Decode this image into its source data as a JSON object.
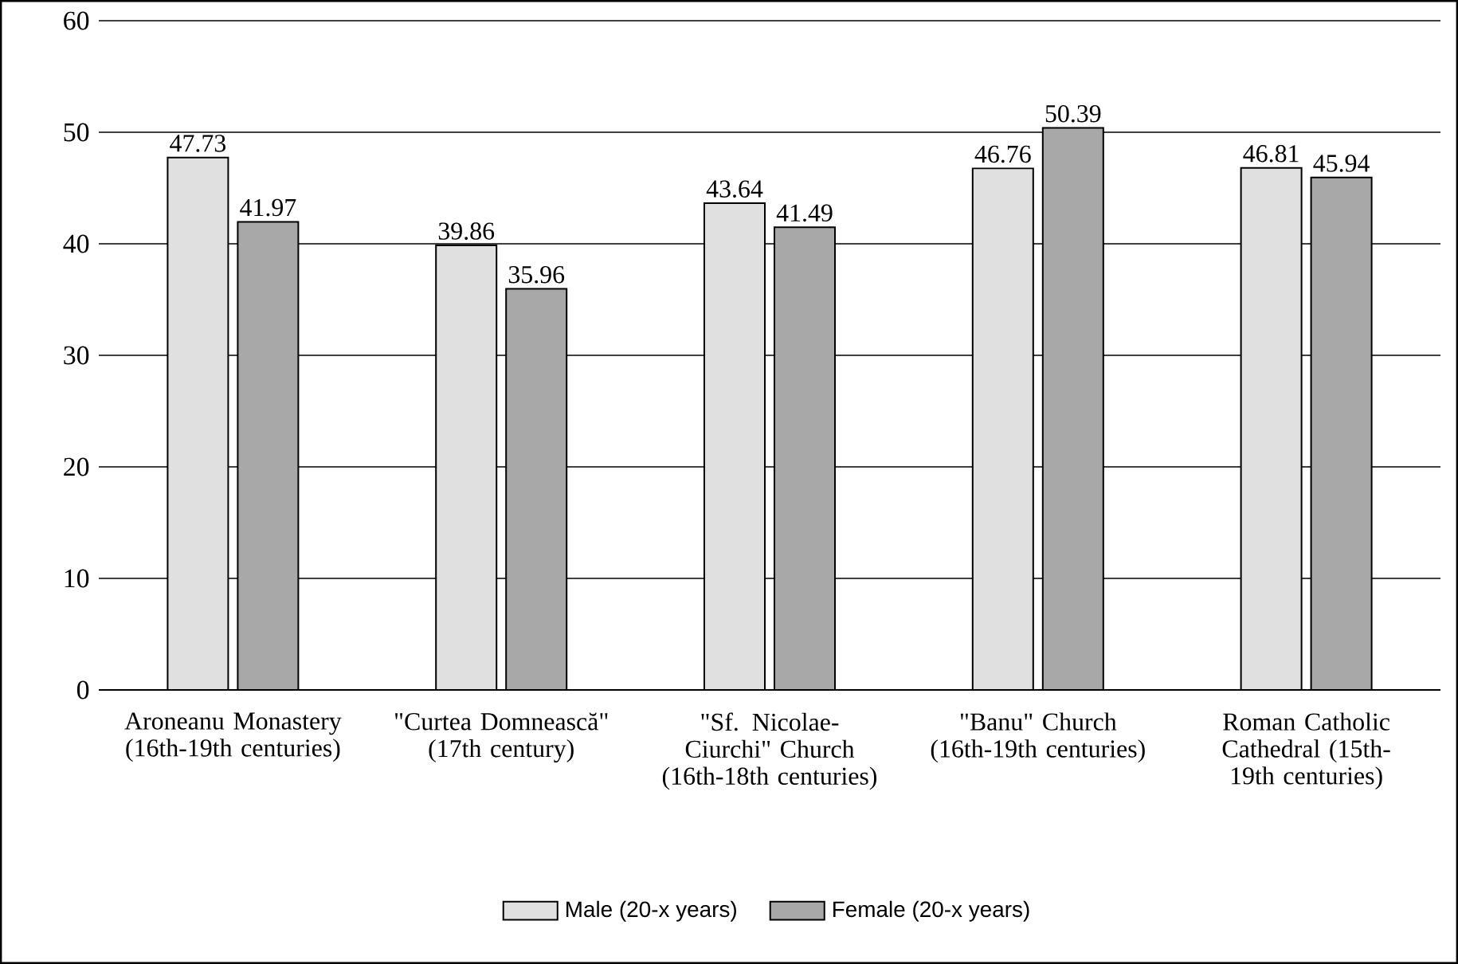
{
  "chart_data": {
    "type": "bar",
    "categories": [
      "Aroneanu Monastery (16th-19th centuries)",
      "\"Curtea Domnească\" (17th century)",
      "\"Sf. Nicolae-Ciurchi\" Church (16th-18th centuries)",
      "\"Banu\" Church (16th-19th centuries)",
      "Roman Catholic Cathedral (15th-19th centuries)"
    ],
    "series": [
      {
        "name": "Male (20-x years)",
        "color": "#e0e0e0",
        "values": [
          47.73,
          39.86,
          43.64,
          46.76,
          46.81
        ]
      },
      {
        "name": "Female (20-x years)",
        "color": "#a8a8a8",
        "values": [
          41.97,
          35.96,
          41.49,
          50.39,
          45.94
        ]
      }
    ],
    "ylim": [
      0,
      60
    ],
    "yticks": [
      0,
      10,
      20,
      30,
      40,
      50,
      60
    ],
    "grid": "y",
    "legend": "bottom",
    "data_labels": true
  }
}
